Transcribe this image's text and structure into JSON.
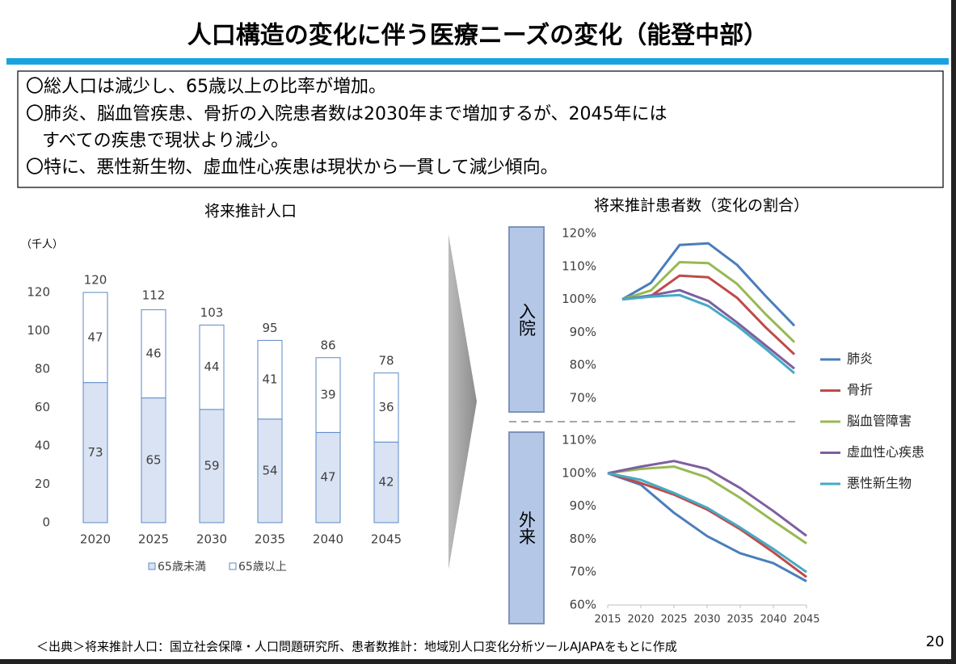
{
  "title": "人口構造の変化に伴う医療ニーズの変化（能登中部）",
  "bullets": [
    "〇総人口は減少し、65歳以上の比率が増加。",
    "〇肺炎、脳血管疾患、骨折の入院患者数は2030年まで増加するが、2045年には",
    "すべての疾患で現状より減少。",
    "〇特に、悪性新生物、虚血性心疾患は現状から一貫して減少傾向。"
  ],
  "source": "＜出典＞将来推計人口：国立社会保障・人口問題研究所、患者数推計：地域別人口変化分析ツールAJAPAをもとに作成",
  "page_number": "20",
  "chart_data": [
    {
      "type": "bar",
      "stacked": true,
      "title": "将来推計人口",
      "unit": "（千人）",
      "categories": [
        "2020",
        "2025",
        "2030",
        "2035",
        "2040",
        "2045"
      ],
      "series": [
        {
          "name": "65歳未満",
          "color": "#dae3f3",
          "values": [
            73,
            65,
            59,
            54,
            47,
            42
          ]
        },
        {
          "name": "65歳以上",
          "color": "#ffffff",
          "values": [
            47,
            46,
            44,
            41,
            39,
            36
          ]
        }
      ],
      "totals": [
        120,
        112,
        103,
        95,
        86,
        78
      ],
      "edgecolor": "#5b8ac6",
      "ylim": [
        0,
        120
      ],
      "yticks": [
        0,
        20,
        40,
        60,
        80,
        100,
        120
      ]
    },
    {
      "type": "line",
      "title": "将来推計患者数（変化の割合）",
      "label": "入院",
      "x": [
        2015,
        2020,
        2025,
        2030,
        2035,
        2040,
        2045
      ],
      "xlim": [
        2015,
        2045
      ],
      "series": [
        {
          "name": "肺炎",
          "color": "#4a7ebb",
          "values": [
            100,
            105,
            116.5,
            117,
            110.5,
            101,
            92
          ]
        },
        {
          "name": "骨折",
          "color": "#be4b48",
          "values": [
            100,
            101,
            107.2,
            106.7,
            100.5,
            91.5,
            83.3
          ]
        },
        {
          "name": "脳血管障害",
          "color": "#98b954",
          "values": [
            100,
            102.7,
            111.3,
            111,
            104.7,
            95.5,
            87
          ]
        },
        {
          "name": "虚血性心疾患",
          "color": "#7d5fa0",
          "values": [
            100,
            101.2,
            102.8,
            99.5,
            93,
            86,
            79
          ]
        },
        {
          "name": "悪性新生物",
          "color": "#46aac5",
          "values": [
            100,
            100.8,
            101.3,
            98,
            92,
            85,
            77.6
          ]
        }
      ],
      "ylim": [
        70,
        120
      ],
      "yticks": [
        {
          "value": 70,
          "label": "70%"
        },
        {
          "value": 80,
          "label": "80%"
        },
        {
          "value": 90,
          "label": "90%"
        },
        {
          "value": 100,
          "label": "100%"
        },
        {
          "value": 110,
          "label": "110%"
        },
        {
          "value": 120,
          "label": "120%"
        }
      ],
      "legend": "right"
    },
    {
      "type": "line",
      "label": "外来",
      "x": [
        2015,
        2020,
        2025,
        2030,
        2035,
        2040,
        2045
      ],
      "xlim": [
        2015,
        2045
      ],
      "xticks": [
        2015,
        2020,
        2025,
        2030,
        2035,
        2040,
        2045
      ],
      "series": [
        {
          "color": "#4a7ebb",
          "values": [
            100,
            96.5,
            88,
            80.9,
            75.7,
            72.7,
            67.2
          ]
        },
        {
          "color": "#be4b48",
          "values": [
            100,
            97,
            93.5,
            89,
            83,
            76,
            68.5
          ]
        },
        {
          "color": "#98b954",
          "values": [
            100,
            101.3,
            102,
            98.7,
            92.5,
            85.5,
            78.7
          ]
        },
        {
          "color": "#7d5fa0",
          "values": [
            100,
            102,
            103.7,
            101.3,
            95.5,
            88.5,
            81
          ]
        },
        {
          "color": "#46aac5",
          "values": [
            100,
            98,
            94,
            89.5,
            83.5,
            77,
            70
          ]
        }
      ],
      "ylim": [
        60,
        110
      ],
      "yticks": [
        {
          "value": 60,
          "label": "60%"
        },
        {
          "value": 70,
          "label": "70%"
        },
        {
          "value": 80,
          "label": "80%"
        },
        {
          "value": 90,
          "label": "90%"
        },
        {
          "value": 100,
          "label": "100%"
        },
        {
          "value": 110,
          "label": "110%"
        }
      ]
    }
  ]
}
